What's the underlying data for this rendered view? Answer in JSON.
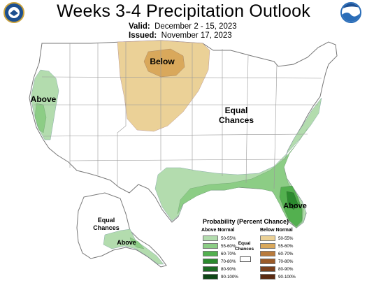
{
  "header": {
    "title": "Weeks 3-4 Precipitation Outlook",
    "valid_label": "Valid:",
    "valid_value": "December 2 - 15, 2023",
    "issued_label": "Issued:",
    "issued_value": "November 17, 2023"
  },
  "logos": {
    "left": "commerce-seal-icon",
    "right": "noaa-logo-icon"
  },
  "map_labels": {
    "below": "Below",
    "above_west": "Above",
    "equal_chances_line1": "Equal",
    "equal_chances_line2": "Chances",
    "above_florida": "Above",
    "alaska_equal_line1": "Equal",
    "alaska_equal_line2": "Chances",
    "alaska_above": "Above"
  },
  "legend": {
    "title": "Probability (Percent Chance)",
    "above_header": "Above Normal",
    "below_header": "Below Normal",
    "equal_line1": "Equal",
    "equal_line2": "Chances",
    "categories": [
      "50-55%",
      "55-60%",
      "60-70%",
      "70-80%",
      "80-90%",
      "90-100%"
    ],
    "above_colors": [
      "#b3dcae",
      "#8ccd85",
      "#53b04f",
      "#2b8a2e",
      "#1c6b23",
      "#0f4617"
    ],
    "below_colors": [
      "#ebd197",
      "#d9a85b",
      "#b87a3c",
      "#9a5a28",
      "#7a3f1b",
      "#5a2a12"
    ]
  },
  "colors": {
    "above_50_55": "#b3dcae",
    "above_55_60": "#8ccd85",
    "above_60_70": "#53b04f",
    "above_70_80": "#2b8a2e",
    "below_50_55": "#ebd197",
    "below_55_60": "#d9a85b",
    "land": "#ffffff",
    "borders": "#888888"
  }
}
